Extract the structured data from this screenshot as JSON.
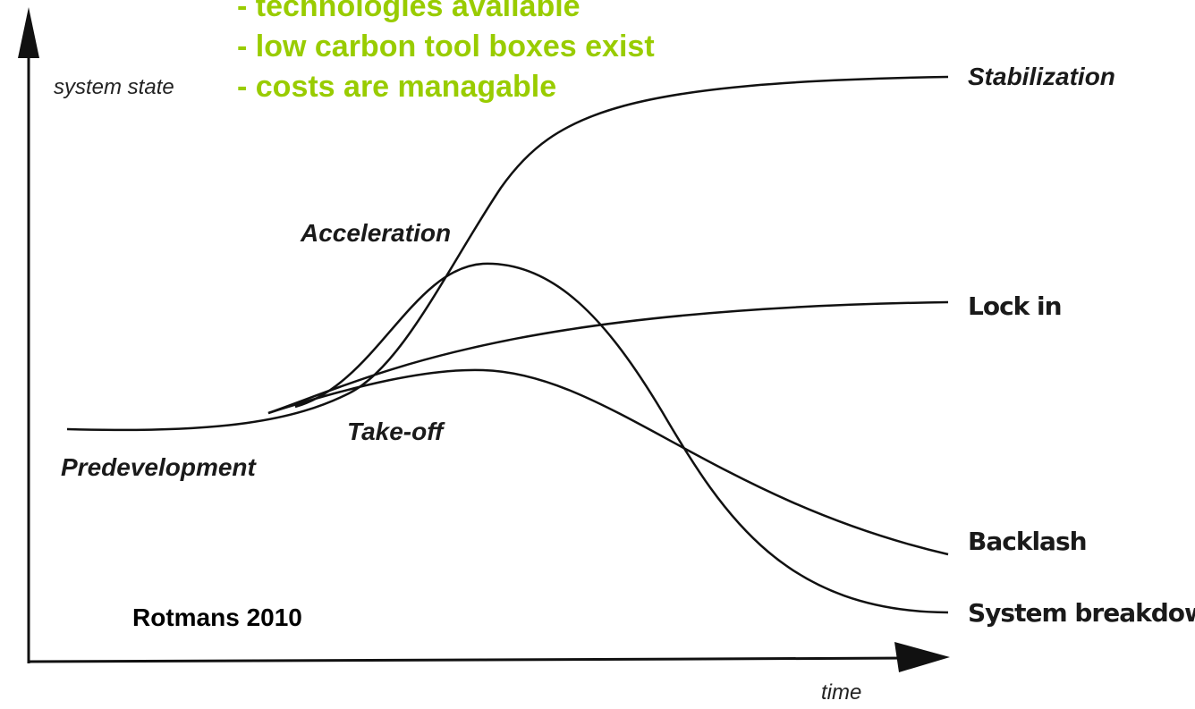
{
  "axes": {
    "y_label": "system state",
    "x_label": "time"
  },
  "phases": [
    "Predevelopment",
    "Take-off",
    "Acceleration"
  ],
  "outcomes": [
    "Stabilization",
    "Lock in",
    "Backlash",
    "System breakdown"
  ],
  "notes": [
    "- technologies available",
    "- low carbon tool boxes exist",
    "- costs are managable"
  ],
  "citation": "Rotmans 2010"
}
